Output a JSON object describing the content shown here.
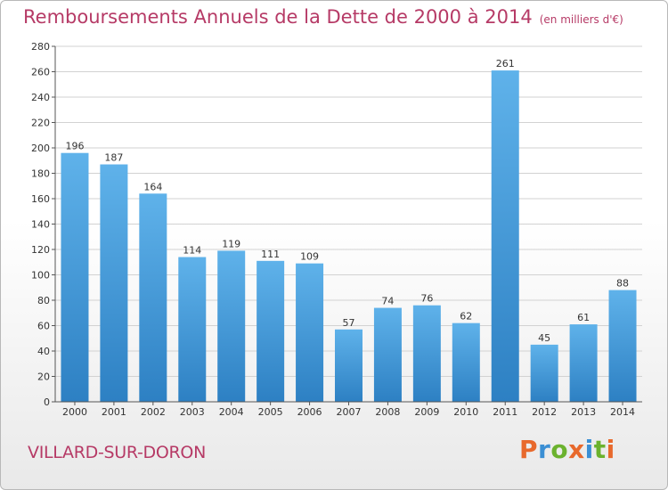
{
  "header": {
    "title": "Remboursements Annuels de la Dette de 2000 à 2014",
    "unit": "(en milliers d'€)"
  },
  "footer": {
    "city": "VILLARD-SUR-DORON",
    "brand": "Proxiti"
  },
  "colors": {
    "bar_light": "#5fb2ea",
    "bar_dark": "#2d80c3",
    "title": "#b63a66"
  },
  "chart_data": {
    "type": "bar",
    "title": "Remboursements Annuels de la Dette de 2000 à 2014",
    "subtitle": "(en milliers d'€)",
    "categories": [
      "2000",
      "2001",
      "2002",
      "2003",
      "2004",
      "2005",
      "2006",
      "2007",
      "2008",
      "2009",
      "2010",
      "2011",
      "2012",
      "2013",
      "2014"
    ],
    "values": [
      196,
      187,
      164,
      114,
      119,
      111,
      109,
      57,
      74,
      76,
      62,
      261,
      45,
      61,
      88
    ],
    "ylim": [
      0,
      280
    ],
    "yticks": [
      0,
      20,
      40,
      60,
      80,
      100,
      120,
      140,
      160,
      180,
      200,
      220,
      240,
      260,
      280
    ],
    "grid": true
  }
}
